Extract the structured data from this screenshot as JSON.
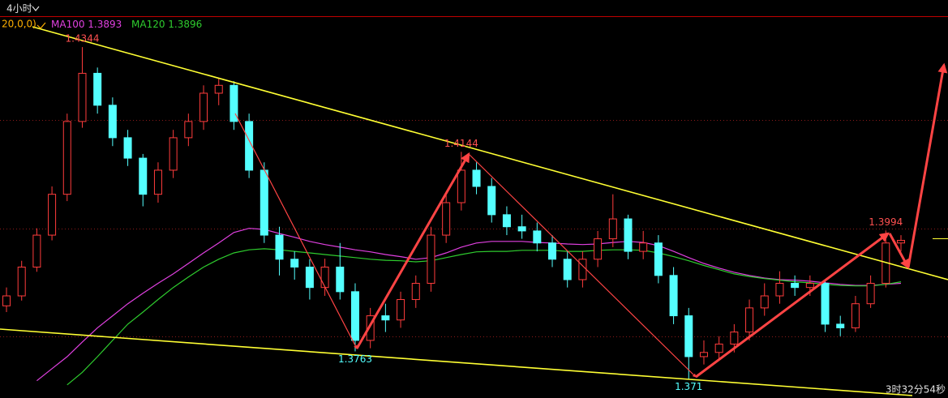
{
  "chart_data": {
    "type": "candlestick",
    "timeframe": "4小时",
    "params": "20,0,0)",
    "countdown": "3时32分54秒",
    "ylim": [
      1.3674,
      1.4403
    ],
    "ygrid": [
      1.4205,
      1.3998,
      1.3792
    ],
    "up_color": "#ff3c3c",
    "down_color": "#54ffff",
    "open": [
      1.385,
      1.3869,
      1.3924,
      1.3985,
      1.4063,
      1.4202,
      1.4294,
      1.4233,
      1.4171,
      1.4132,
      1.4063,
      1.4109,
      1.4171,
      1.4202,
      1.4256,
      1.4271,
      1.4202,
      1.4109,
      1.3985,
      1.3939,
      1.3924,
      1.3885,
      1.3924,
      1.3877,
      1.3784,
      1.3831,
      1.3823,
      1.3862,
      1.3893,
      1.3985,
      1.4047,
      1.4109,
      1.4078,
      1.4024,
      1.4001,
      1.3993,
      1.397,
      1.3939,
      1.39,
      1.3939,
      1.3978,
      1.4016,
      1.3954,
      1.397,
      1.3908,
      1.3831,
      1.3753,
      1.3761,
      1.3777,
      1.38,
      1.3846,
      1.3869,
      1.3893,
      1.3885,
      1.3893,
      1.3815,
      1.3808,
      1.3854,
      1.3893,
      1.397
    ],
    "high": [
      1.3885,
      1.3936,
      1.3998,
      1.4078,
      1.4217,
      1.4344,
      1.4305,
      1.4248,
      1.4186,
      1.414,
      1.4124,
      1.4186,
      1.4217,
      1.4271,
      1.4286,
      1.4279,
      1.4217,
      1.4124,
      1.4001,
      1.3954,
      1.3939,
      1.394,
      1.397,
      1.3893,
      1.3846,
      1.3854,
      1.3877,
      1.3908,
      1.4001,
      1.4063,
      1.4144,
      1.4124,
      1.4094,
      1.404,
      1.4024,
      1.4009,
      1.3985,
      1.3954,
      1.3954,
      1.3993,
      1.4063,
      1.4024,
      1.3993,
      1.3985,
      1.3924,
      1.3846,
      1.3784,
      1.3792,
      1.3815,
      1.3862,
      1.3893,
      1.3916,
      1.3908,
      1.3908,
      1.39,
      1.3831,
      1.3869,
      1.3908,
      1.3994,
      1.3985
    ],
    "low": [
      1.3838,
      1.386,
      1.3915,
      1.3975,
      1.405,
      1.419,
      1.4217,
      1.4155,
      1.4117,
      1.404,
      1.4047,
      1.4094,
      1.4155,
      1.4186,
      1.4233,
      1.4186,
      1.4094,
      1.397,
      1.3908,
      1.39,
      1.3862,
      1.3869,
      1.3862,
      1.3763,
      1.3769,
      1.38,
      1.3808,
      1.3846,
      1.3877,
      1.397,
      1.4032,
      1.4063,
      1.4009,
      1.3985,
      1.3978,
      1.3954,
      1.3924,
      1.3885,
      1.3885,
      1.3924,
      1.3962,
      1.3939,
      1.3939,
      1.3893,
      1.3815,
      1.371,
      1.3738,
      1.3746,
      1.3761,
      1.3784,
      1.3831,
      1.3854,
      1.3869,
      1.3869,
      1.38,
      1.3792,
      1.38,
      1.3846,
      1.3885,
      1.3954
    ],
    "close": [
      1.3869,
      1.3924,
      1.3985,
      1.4063,
      1.4202,
      1.4294,
      1.4233,
      1.4171,
      1.4132,
      1.4063,
      1.4109,
      1.4171,
      1.4202,
      1.4256,
      1.4271,
      1.4202,
      1.4109,
      1.3985,
      1.3939,
      1.3924,
      1.3885,
      1.3924,
      1.3877,
      1.3784,
      1.3831,
      1.3823,
      1.3862,
      1.3893,
      1.3985,
      1.4047,
      1.4109,
      1.4078,
      1.4024,
      1.4001,
      1.3993,
      1.397,
      1.3939,
      1.39,
      1.3939,
      1.3978,
      1.4016,
      1.3954,
      1.397,
      1.3908,
      1.3831,
      1.3753,
      1.3761,
      1.3777,
      1.38,
      1.3846,
      1.3869,
      1.3893,
      1.3885,
      1.3893,
      1.3815,
      1.3808,
      1.3854,
      1.3893,
      1.397,
      1.3975
    ],
    "series": [
      {
        "name": "MA100",
        "color": "#e040e0",
        "values": [
          null,
          null,
          1.3707,
          1.373,
          1.3753,
          1.3781,
          1.3808,
          1.3831,
          1.3854,
          1.3874,
          1.3893,
          1.3911,
          1.3931,
          1.3951,
          1.397,
          1.399,
          1.3998,
          1.3996,
          1.3988,
          1.3981,
          1.3973,
          1.3967,
          1.3962,
          1.3957,
          1.3953,
          1.3948,
          1.3944,
          1.3939,
          1.3942,
          1.3951,
          1.3962,
          1.397,
          1.3973,
          1.3973,
          1.3973,
          1.3971,
          1.397,
          1.3968,
          1.3967,
          1.3968,
          1.3971,
          1.3973,
          1.3971,
          1.3965,
          1.3954,
          1.3942,
          1.3931,
          1.3922,
          1.3914,
          1.3908,
          1.3903,
          1.39,
          1.3899,
          1.3897,
          1.3894,
          1.3891,
          1.3889,
          1.3889,
          1.3891,
          1.3893
        ]
      },
      {
        "name": "MA120",
        "color": "#2ecc2e",
        "values": [
          null,
          null,
          null,
          null,
          1.3699,
          1.3723,
          1.3753,
          1.3784,
          1.3815,
          1.3838,
          1.3862,
          1.3885,
          1.3905,
          1.3924,
          1.3939,
          1.3951,
          1.3957,
          1.3959,
          1.3957,
          1.3954,
          1.3951,
          1.3948,
          1.3945,
          1.3942,
          1.3939,
          1.3937,
          1.3936,
          1.3934,
          1.3936,
          1.3942,
          1.3948,
          1.3953,
          1.3954,
          1.3954,
          1.3956,
          1.3956,
          1.3956,
          1.3954,
          1.3954,
          1.3956,
          1.3957,
          1.3957,
          1.3956,
          1.3951,
          1.3944,
          1.3936,
          1.3927,
          1.3919,
          1.3911,
          1.3906,
          1.3902,
          1.3899,
          1.3896,
          1.3894,
          1.3891,
          1.3889,
          1.3888,
          1.3888,
          1.3891,
          1.3896
        ]
      }
    ],
    "annotations": [
      1.4344,
      1.4144,
      1.3994,
      1.3763,
      1.371
    ]
  }
}
